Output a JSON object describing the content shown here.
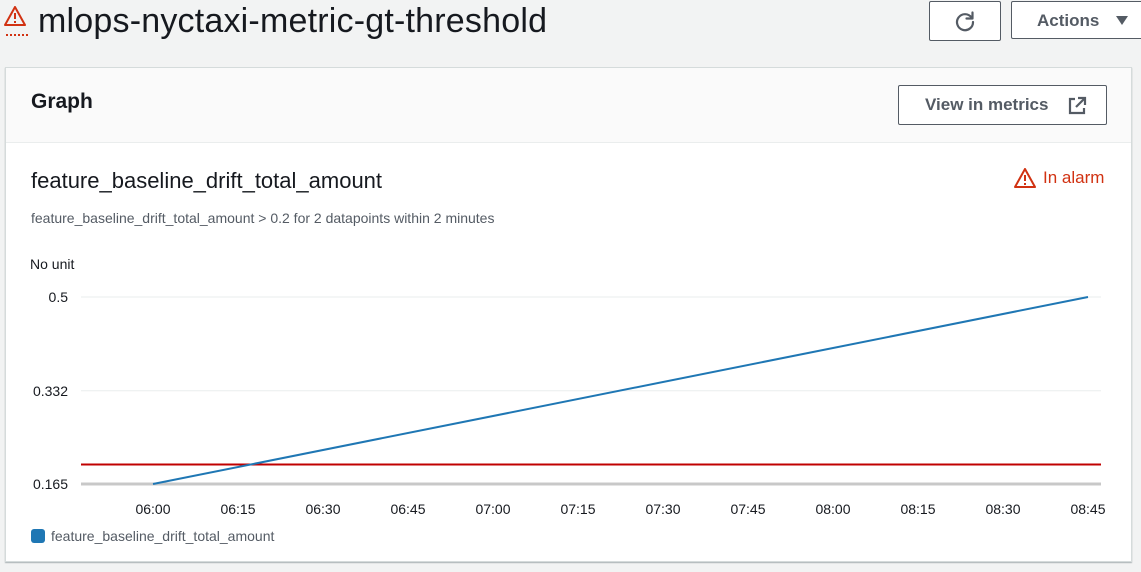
{
  "header": {
    "title": "mlops-nyctaxi-metric-gt-threshold",
    "actions_label": "Actions"
  },
  "panel": {
    "title": "Graph",
    "view_in_metrics_label": "View in metrics"
  },
  "alarm": {
    "metric_name": "feature_baseline_drift_total_amount",
    "condition": "feature_baseline_drift_total_amount > 0.2 for 2 datapoints within 2 minutes",
    "state": "In alarm",
    "state_color": "#d13212"
  },
  "chart_data": {
    "type": "line",
    "unit_label": "No unit",
    "x": [
      "06:00",
      "06:15",
      "06:30",
      "06:45",
      "07:00",
      "07:15",
      "07:30",
      "07:45",
      "08:00",
      "08:15",
      "08:30",
      "08:45"
    ],
    "y_ticks": [
      0.165,
      0.332,
      0.5
    ],
    "ylim": [
      0.165,
      0.5
    ],
    "series": [
      {
        "name": "feature_baseline_drift_total_amount",
        "color": "#1f77b4",
        "points": [
          {
            "x": "06:00",
            "y": 0.165
          },
          {
            "x": "08:45",
            "y": 0.5
          }
        ]
      }
    ],
    "threshold": {
      "value": 0.2,
      "color": "#c00000"
    },
    "grid": true,
    "legend": "bottom-left"
  }
}
